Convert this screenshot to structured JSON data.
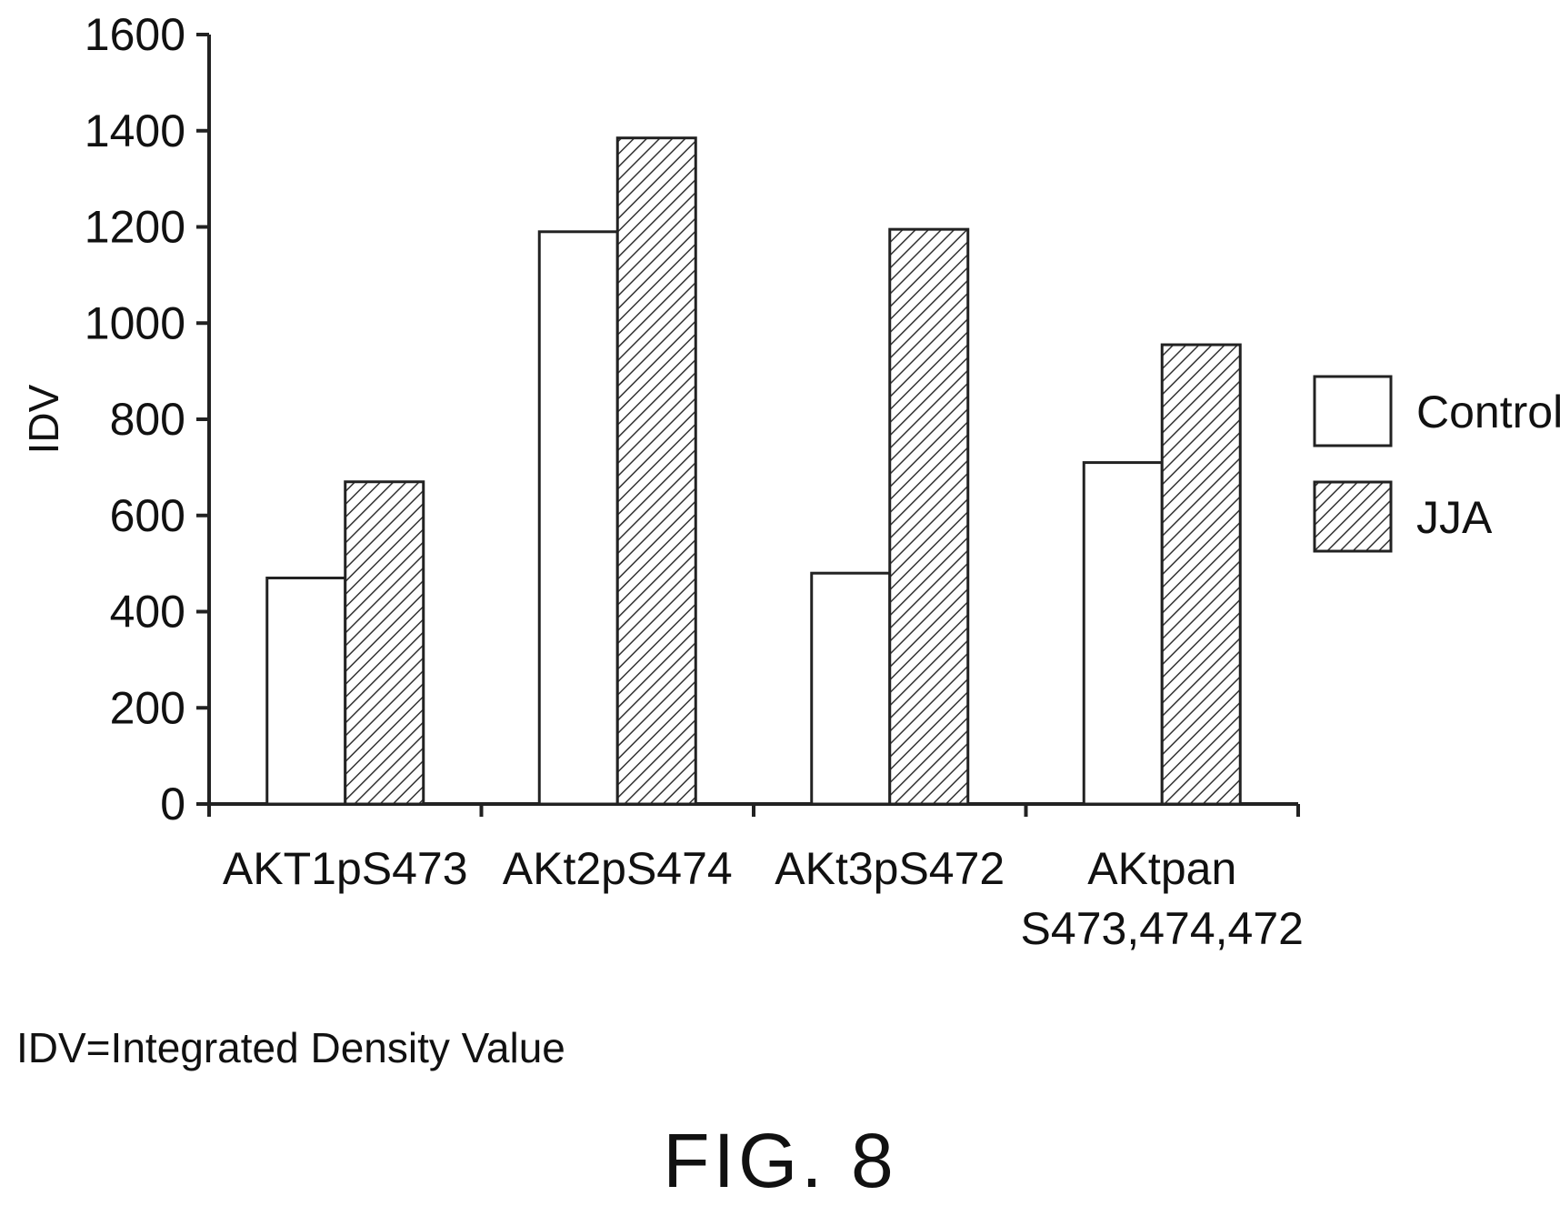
{
  "chart_data": {
    "type": "bar",
    "title": "",
    "xlabel": "",
    "ylabel": "IDV",
    "ylim": [
      0,
      1600
    ],
    "yticks": [
      0,
      200,
      400,
      600,
      800,
      1000,
      1200,
      1400,
      1600
    ],
    "categories": [
      "AKT1pS473",
      "AKt2pS474",
      "AKt3pS472",
      "AKtpan S473,474,472"
    ],
    "category_lines": [
      [
        "AKT1pS473"
      ],
      [
        "AKt2pS474"
      ],
      [
        "AKt3pS472"
      ],
      [
        "AKtpan",
        "S473,474,472"
      ]
    ],
    "series": [
      {
        "name": "Control",
        "values": [
          470,
          1190,
          480,
          710
        ],
        "fill": "#ffffff",
        "pattern": "none"
      },
      {
        "name": "JJA",
        "values": [
          670,
          1385,
          1195,
          955
        ],
        "fill": "#ffffff",
        "pattern": "diagonal-hatch"
      }
    ],
    "legend_position": "right",
    "grid": false,
    "colors": {
      "outline": "#222222",
      "hatch": "#333333"
    }
  },
  "footnote": "IDV=Integrated Density Value",
  "figure_label": "FIG. 8"
}
